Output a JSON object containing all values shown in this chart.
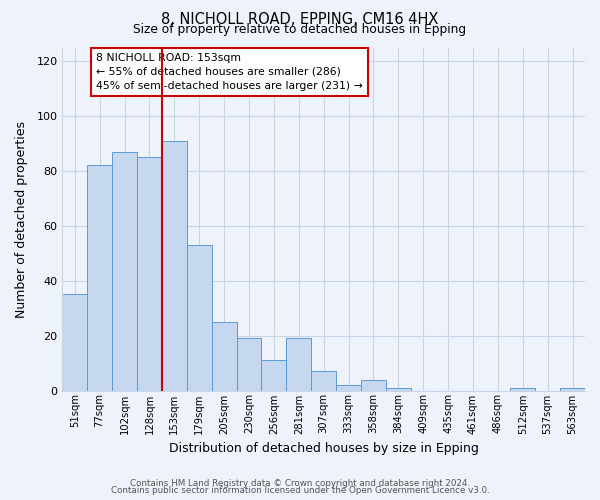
{
  "title_line1": "8, NICHOLL ROAD, EPPING, CM16 4HX",
  "title_line2": "Size of property relative to detached houses in Epping",
  "xlabel": "Distribution of detached houses by size in Epping",
  "ylabel": "Number of detached properties",
  "categories": [
    "51sqm",
    "77sqm",
    "102sqm",
    "128sqm",
    "153sqm",
    "179sqm",
    "205sqm",
    "230sqm",
    "256sqm",
    "281sqm",
    "307sqm",
    "333sqm",
    "358sqm",
    "384sqm",
    "409sqm",
    "435sqm",
    "461sqm",
    "486sqm",
    "512sqm",
    "537sqm",
    "563sqm"
  ],
  "values": [
    35,
    82,
    87,
    85,
    91,
    53,
    25,
    19,
    11,
    19,
    7,
    2,
    4,
    1,
    0,
    0,
    0,
    0,
    1,
    0,
    1
  ],
  "bar_color": "#c5d8f0",
  "bar_edge_color": "#5b9bd5",
  "highlight_index": 4,
  "highlight_line_color": "#cc0000",
  "ylim": [
    0,
    125
  ],
  "yticks": [
    0,
    20,
    40,
    60,
    80,
    100,
    120
  ],
  "annotation_text_line1": "8 NICHOLL ROAD: 153sqm",
  "annotation_text_line2": "← 55% of detached houses are smaller (286)",
  "annotation_text_line3": "45% of semi-detached houses are larger (231) →",
  "footer_line1": "Contains HM Land Registry data © Crown copyright and database right 2024.",
  "footer_line2": "Contains public sector information licensed under the Open Government Licence v3.0.",
  "background_color": "#eef2fb",
  "grid_color": "#c8d4e8"
}
